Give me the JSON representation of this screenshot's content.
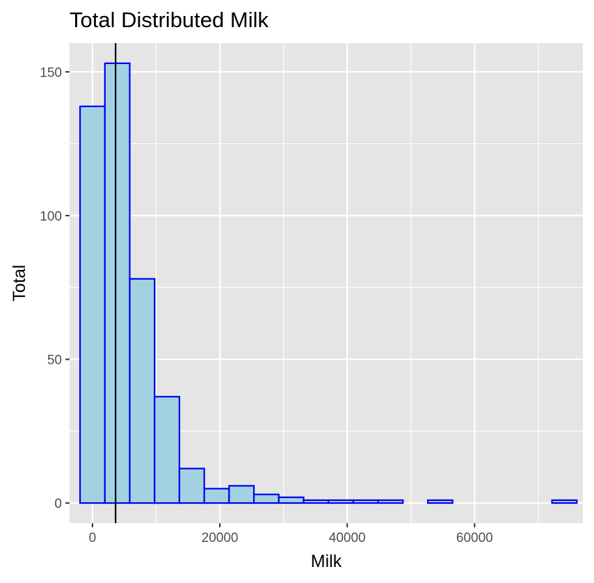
{
  "chart_data": {
    "type": "bar",
    "title": "Total Distributed Milk",
    "xlabel": "Milk",
    "ylabel": "Total",
    "xlim": [
      -3600,
      77000
    ],
    "ylim": [
      -7,
      160
    ],
    "x_ticks": [
      0,
      20000,
      40000,
      60000
    ],
    "x_tick_labels": [
      "0",
      "20000",
      "40000",
      "60000"
    ],
    "y_ticks": [
      0,
      50,
      100,
      150
    ],
    "y_tick_labels": [
      "0",
      "50",
      "100",
      "150"
    ],
    "grid": true,
    "bin_width": 3900,
    "bins": [
      {
        "x0": -1950,
        "x1": 1950,
        "count": 138
      },
      {
        "x0": 1950,
        "x1": 5850,
        "count": 153
      },
      {
        "x0": 5850,
        "x1": 9750,
        "count": 78
      },
      {
        "x0": 9750,
        "x1": 13650,
        "count": 37
      },
      {
        "x0": 13650,
        "x1": 17550,
        "count": 12
      },
      {
        "x0": 17550,
        "x1": 21450,
        "count": 5
      },
      {
        "x0": 21450,
        "x1": 25350,
        "count": 6
      },
      {
        "x0": 25350,
        "x1": 29250,
        "count": 3
      },
      {
        "x0": 29250,
        "x1": 33150,
        "count": 2
      },
      {
        "x0": 33150,
        "x1": 37050,
        "count": 1
      },
      {
        "x0": 37050,
        "x1": 40950,
        "count": 1
      },
      {
        "x0": 40950,
        "x1": 44850,
        "count": 1
      },
      {
        "x0": 44850,
        "x1": 48750,
        "count": 1
      },
      {
        "x0": 48750,
        "x1": 52650,
        "count": 0
      },
      {
        "x0": 52650,
        "x1": 56550,
        "count": 1
      },
      {
        "x0": 56550,
        "x1": 60450,
        "count": 0
      },
      {
        "x0": 60450,
        "x1": 64350,
        "count": 0
      },
      {
        "x0": 64350,
        "x1": 68250,
        "count": 0
      },
      {
        "x0": 68250,
        "x1": 72150,
        "count": 0
      },
      {
        "x0": 72150,
        "x1": 76050,
        "count": 1
      }
    ],
    "reference_line": {
      "x": 3627
    },
    "colors": {
      "bar_fill": "#a2d1e2",
      "bar_outline": "#0000ee",
      "panel_background": "#e5e5e5",
      "reference_line": "#000000"
    }
  }
}
